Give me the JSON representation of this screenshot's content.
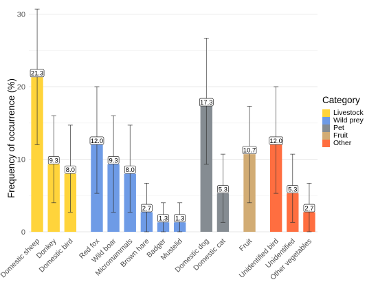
{
  "chart_data": {
    "type": "bar",
    "ylabel": "Frequency of occurrence (%)",
    "xlabel": "",
    "ylim": [
      0,
      31
    ],
    "yticks": [
      0,
      10,
      20,
      30
    ],
    "grid": true,
    "legend_position": "right",
    "legend": {
      "title": "Category",
      "entries": [
        {
          "name": "Livestock",
          "color": "#FFD43B"
        },
        {
          "name": "Wild prey",
          "color": "#6E9BE6"
        },
        {
          "name": "Pet",
          "color": "#858C92"
        },
        {
          "name": "Fruit",
          "color": "#D2AC74"
        },
        {
          "name": "Other",
          "color": "#FF6E40"
        }
      ]
    },
    "groups": [
      {
        "category": "Livestock",
        "color": "#FFD43B",
        "bars": [
          {
            "label": "Domestic sheep",
            "value": 21.3,
            "value_label": "21.3",
            "ci": [
              12.0,
              30.7
            ]
          },
          {
            "label": "Donkey",
            "value": 9.3,
            "value_label": "9.3",
            "ci": [
              4.0,
              16.0
            ]
          },
          {
            "label": "Domestic bird",
            "value": 8.0,
            "value_label": "8.0",
            "ci": [
              2.7,
              14.7
            ]
          }
        ]
      },
      {
        "category": "Wild prey",
        "color": "#6E9BE6",
        "bars": [
          {
            "label": "Red fox",
            "value": 12.0,
            "value_label": "12.0",
            "ci": [
              5.3,
              20.0
            ]
          },
          {
            "label": "Wild boar",
            "value": 9.3,
            "value_label": "9.3",
            "ci": [
              2.7,
              16.0
            ]
          },
          {
            "label": "Micromammals",
            "value": 8.0,
            "value_label": "8.0",
            "ci": [
              2.7,
              14.7
            ]
          },
          {
            "label": "Brown hare",
            "value": 2.7,
            "value_label": "2.7",
            "ci": [
              0.0,
              6.7
            ]
          },
          {
            "label": "Badger",
            "value": 1.3,
            "value_label": "1.3",
            "ci": [
              0.0,
              4.0
            ]
          },
          {
            "label": "Mustelid",
            "value": 1.3,
            "value_label": "1.3",
            "ci": [
              0.0,
              4.0
            ]
          }
        ]
      },
      {
        "category": "Pet",
        "color": "#858C92",
        "bars": [
          {
            "label": "Domestic dog",
            "value": 17.3,
            "value_label": "17.3",
            "ci": [
              9.3,
              26.7
            ]
          },
          {
            "label": "Domestic cat",
            "value": 5.3,
            "value_label": "5.3",
            "ci": [
              1.3,
              10.7
            ]
          }
        ]
      },
      {
        "category": "Fruit",
        "color": "#D2AC74",
        "bars": [
          {
            "label": "Fruit",
            "value": 10.7,
            "value_label": "10.7",
            "ci": [
              4.0,
              17.3
            ]
          }
        ]
      },
      {
        "category": "Other",
        "color": "#FF6E40",
        "bars": [
          {
            "label": "Unidentified bird",
            "value": 12.0,
            "value_label": "12.0",
            "ci": [
              5.3,
              20.0
            ]
          },
          {
            "label": "Unidentified",
            "value": 5.3,
            "value_label": "5.3",
            "ci": [
              1.3,
              10.7
            ]
          },
          {
            "label": "Other vegetables",
            "value": 2.7,
            "value_label": "2.7",
            "ci": [
              0.0,
              6.7
            ]
          }
        ]
      }
    ]
  }
}
